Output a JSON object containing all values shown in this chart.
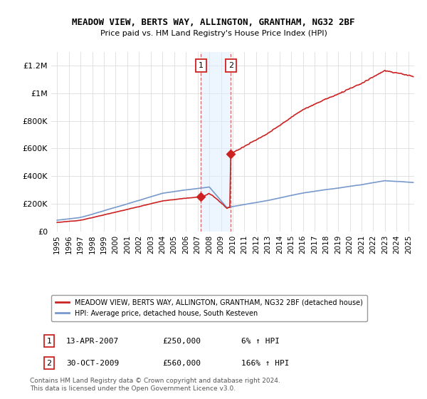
{
  "title": "MEADOW VIEW, BERTS WAY, ALLINGTON, GRANTHAM, NG32 2BF",
  "subtitle": "Price paid vs. HM Land Registry's House Price Index (HPI)",
  "ylabel_ticks": [
    "£0",
    "£200K",
    "£400K",
    "£600K",
    "£800K",
    "£1M",
    "£1.2M"
  ],
  "ytick_values": [
    0,
    200000,
    400000,
    600000,
    800000,
    1000000,
    1200000
  ],
  "ylim": [
    0,
    1300000
  ],
  "xlim_start": 1994.5,
  "xlim_end": 2025.5,
  "transaction1_year": 2007.28,
  "transaction1_price": 250000,
  "transaction2_year": 2009.83,
  "transaction2_price": 560000,
  "hpi_line_color": "#7799cc",
  "price_line_color": "#cc2222",
  "highlight_fill": "#ddeeff",
  "highlight_alpha": 0.5,
  "legend1": "MEADOW VIEW, BERTS WAY, ALLINGTON, GRANTHAM, NG32 2BF (detached house)",
  "legend2": "HPI: Average price, detached house, South Kesteven",
  "table_rows": [
    {
      "num": "1",
      "date": "13-APR-2007",
      "price": "£250,000",
      "pct": "6% ↑ HPI"
    },
    {
      "num": "2",
      "date": "30-OCT-2009",
      "price": "£560,000",
      "pct": "166% ↑ HPI"
    }
  ],
  "footnote1": "Contains HM Land Registry data © Crown copyright and database right 2024.",
  "footnote2": "This data is licensed under the Open Government Licence v3.0."
}
